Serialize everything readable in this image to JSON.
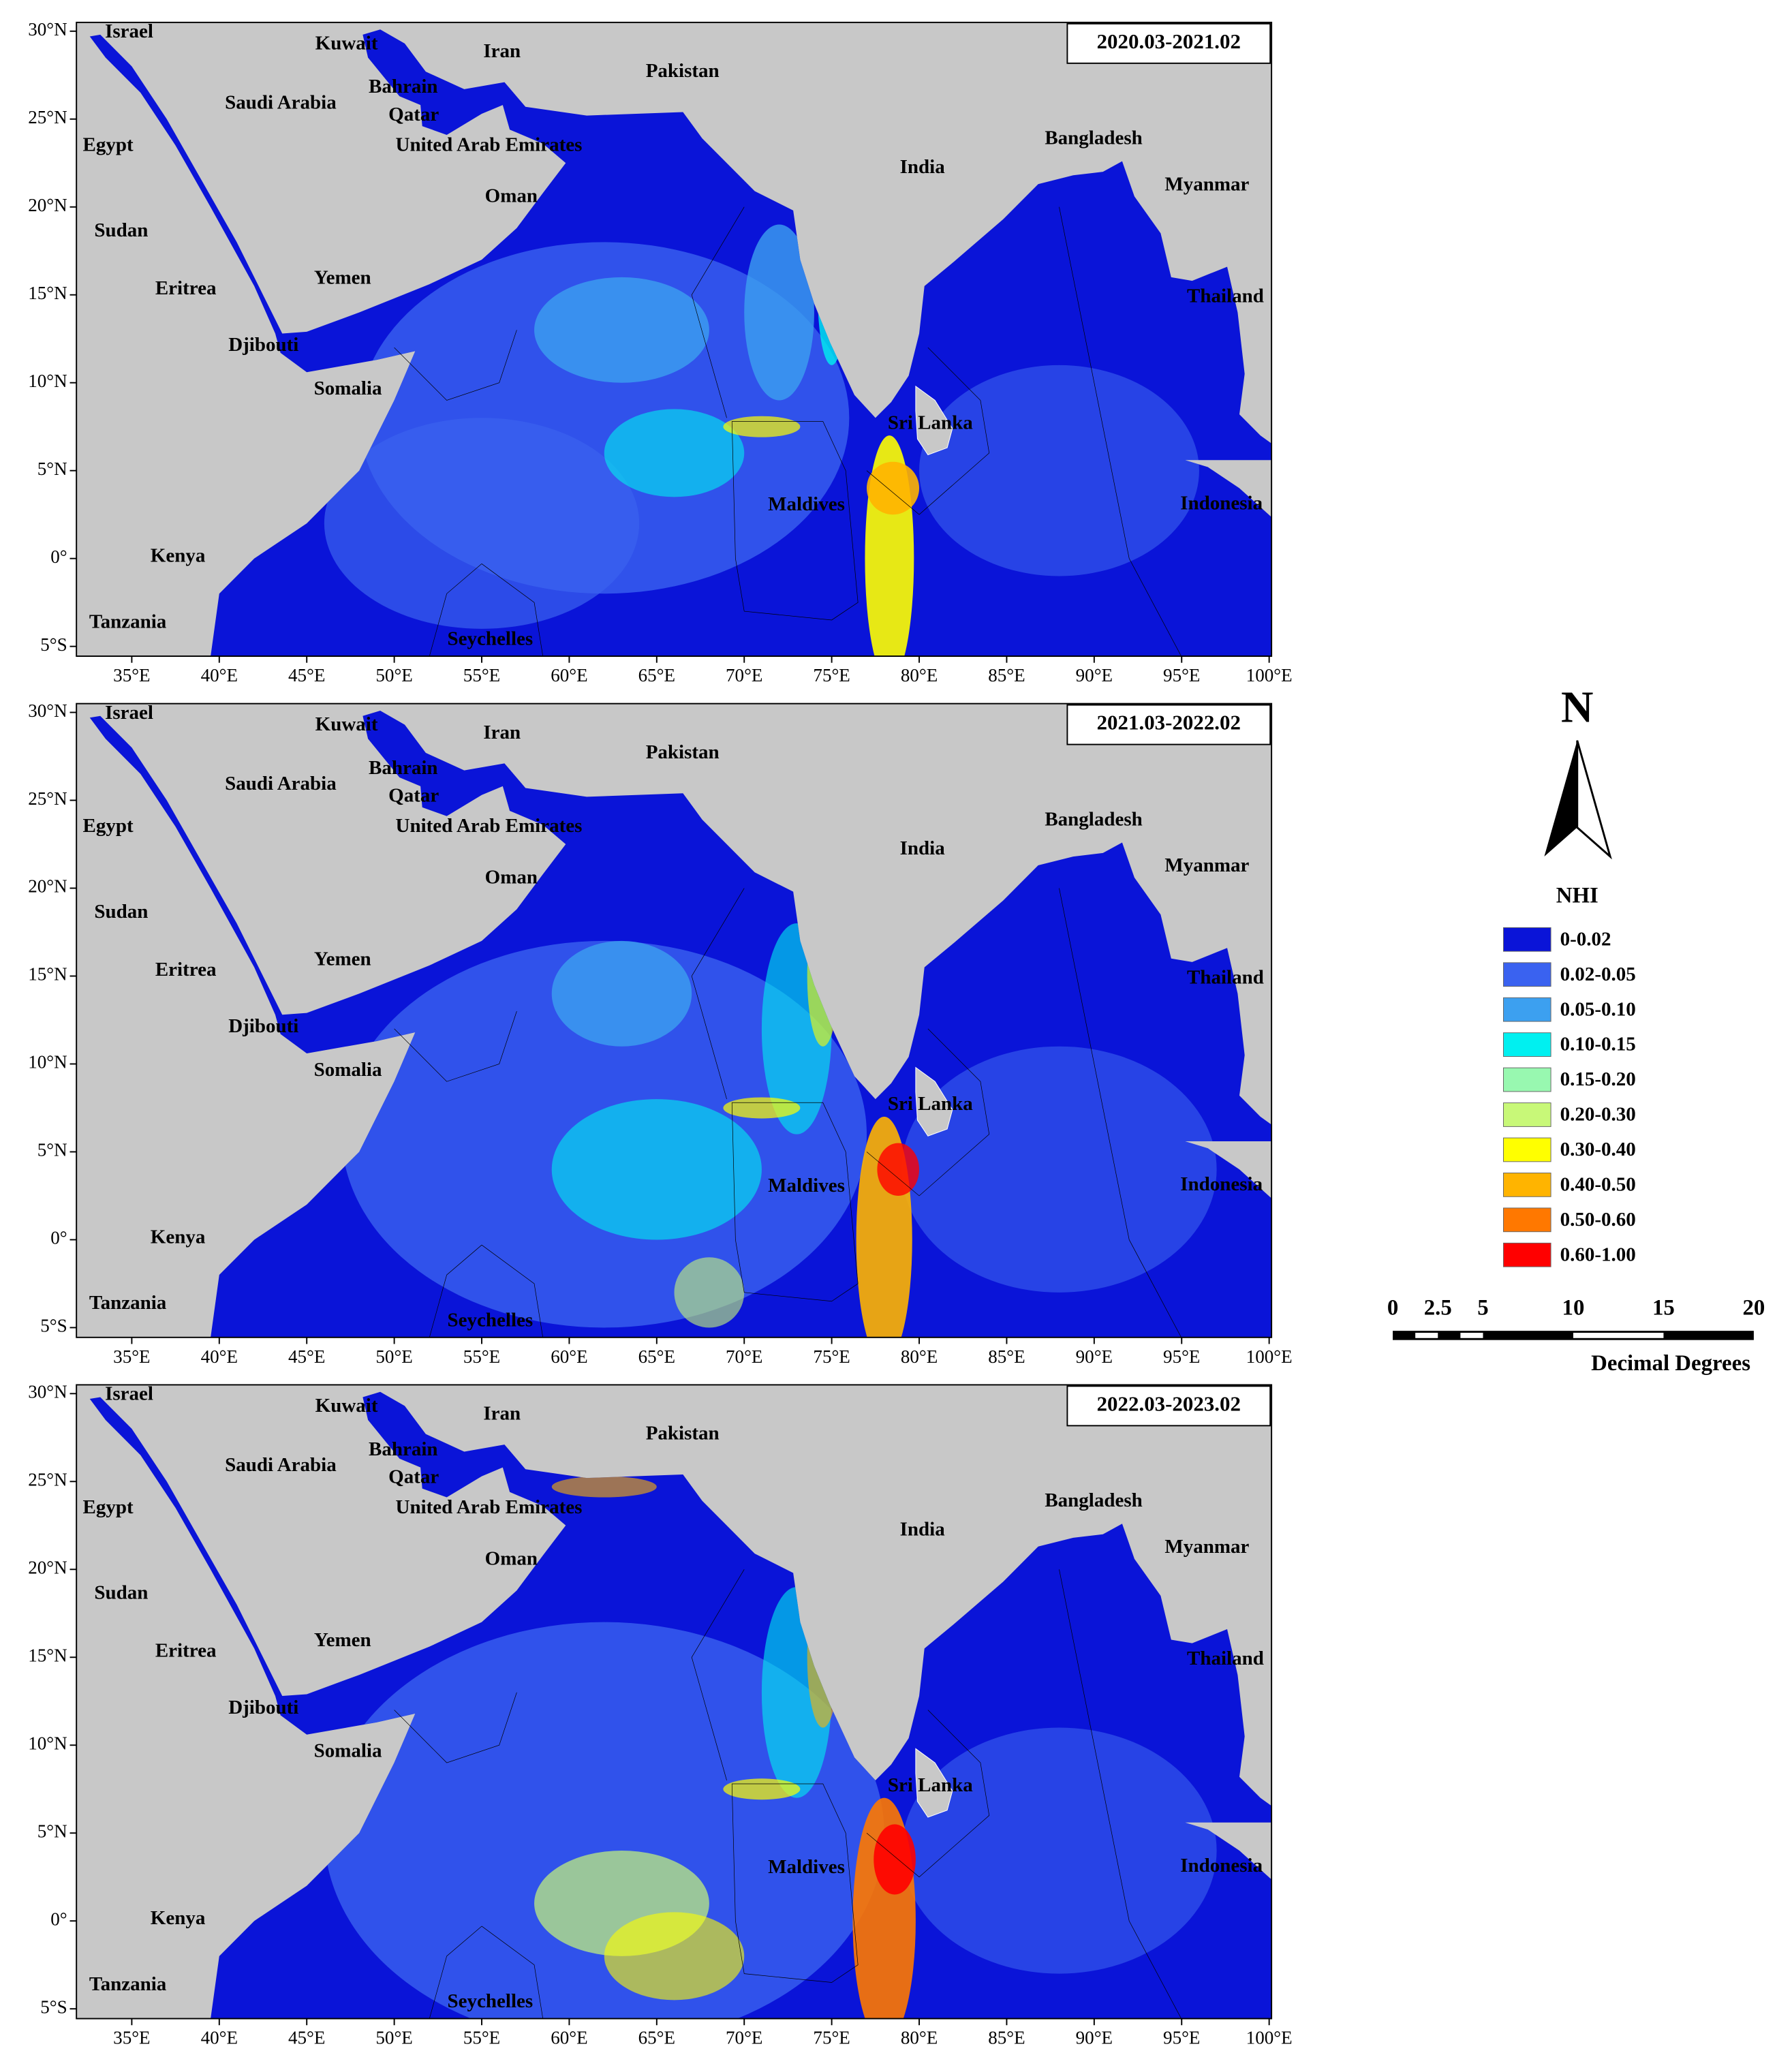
{
  "panels": [
    {
      "title": "2020.03-2021.02"
    },
    {
      "title": "2021.03-2022.02"
    },
    {
      "title": "2022.03-2023.02"
    }
  ],
  "countries": [
    "Israel",
    "Kuwait",
    "Iran",
    "Pakistan",
    "Saudi Arabia",
    "Bahrain",
    "Qatar",
    "Egypt",
    "United Arab Emirates",
    "India",
    "Bangladesh",
    "Myanmar",
    "Oman",
    "Sudan",
    "Yemen",
    "Eritrea",
    "Thailand",
    "Djibouti",
    "Somalia",
    "Sri Lanka",
    "Maldives",
    "Indonesia",
    "Kenya",
    "Tanzania",
    "Seychelles"
  ],
  "lat_ticks": [
    {
      "value": 30,
      "label": "30°N"
    },
    {
      "value": 25,
      "label": "25°N"
    },
    {
      "value": 20,
      "label": "20°N"
    },
    {
      "value": 15,
      "label": "15°N"
    },
    {
      "value": 10,
      "label": "10°N"
    },
    {
      "value": 5,
      "label": "5°N"
    },
    {
      "value": 0,
      "label": "0°"
    },
    {
      "value": -5,
      "label": "5°S"
    }
  ],
  "lon_ticks": [
    {
      "value": 35,
      "label": "35°E"
    },
    {
      "value": 40,
      "label": "40°E"
    },
    {
      "value": 45,
      "label": "45°E"
    },
    {
      "value": 50,
      "label": "50°E"
    },
    {
      "value": 55,
      "label": "55°E"
    },
    {
      "value": 60,
      "label": "60°E"
    },
    {
      "value": 65,
      "label": "65°E"
    },
    {
      "value": 70,
      "label": "70°E"
    },
    {
      "value": 75,
      "label": "75°E"
    },
    {
      "value": 80,
      "label": "80°E"
    },
    {
      "value": 85,
      "label": "85°E"
    },
    {
      "value": 90,
      "label": "90°E"
    },
    {
      "value": 95,
      "label": "95°E"
    },
    {
      "value": 100,
      "label": "100°E"
    }
  ],
  "north_arrow": "N",
  "legend": {
    "title": "NHI",
    "items": [
      {
        "label": "0-0.02",
        "color": "#0a14d8"
      },
      {
        "label": "0.02-0.05",
        "color": "#3a62f0"
      },
      {
        "label": "0.05-0.10",
        "color": "#3ca0f0"
      },
      {
        "label": "0.10-0.15",
        "color": "#00f0f0"
      },
      {
        "label": "0.15-0.20",
        "color": "#98f8b0"
      },
      {
        "label": "0.20-0.30",
        "color": "#c8f878"
      },
      {
        "label": "0.30-0.40",
        "color": "#ffff00"
      },
      {
        "label": "0.40-0.50",
        "color": "#ffb400"
      },
      {
        "label": "0.50-0.60",
        "color": "#ff7800"
      },
      {
        "label": "0.60-1.00",
        "color": "#ff0000"
      }
    ]
  },
  "scale_bar": {
    "ticks": [
      0,
      2.5,
      5,
      10,
      15,
      20
    ],
    "unit": "Decimal Degrees"
  }
}
